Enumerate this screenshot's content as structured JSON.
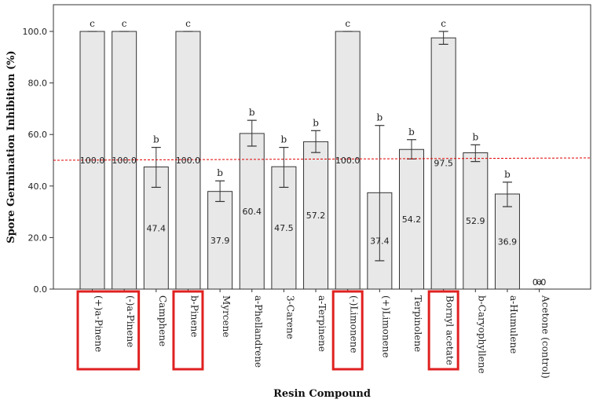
{
  "chart_data": {
    "type": "bar",
    "xlabel": "Resin Compound",
    "ylabel": "Spore Germination Inhibition (%)",
    "ylim": [
      0,
      115
    ],
    "yticks": [
      0,
      20,
      40,
      60,
      80,
      100
    ],
    "ytick_labels": [
      "0.0",
      "20.0",
      "40.0",
      "60.0",
      "80.0",
      "100.0"
    ],
    "categories": [
      "(+)a-Pinene",
      "(-)a-Pinene",
      "Camphene",
      "b-Pinene",
      "Myrcene",
      "a-Phellandrene",
      "3-Carene",
      "a-Terpinene",
      "(-)Limonene",
      "(+)Limonene",
      "Terpinolene",
      "Bornyl acetate",
      "b-Caryophyllene",
      "a-Humulene",
      "Acetone (control)"
    ],
    "values": [
      100.0,
      100.0,
      47.4,
      100.0,
      37.9,
      60.4,
      47.5,
      57.2,
      100.0,
      37.4,
      54.2,
      97.5,
      52.9,
      36.9,
      0.0
    ],
    "value_labels": [
      "100.0",
      "100.0",
      "47.4",
      "100.0",
      "37.9",
      "60.4",
      "47.5",
      "57.2",
      "100.0",
      "37.4",
      "54.2",
      "97.5",
      "52.9",
      "36.9",
      "0.0"
    ],
    "error_low": [
      100,
      100,
      39.5,
      100,
      34,
      55.5,
      39.5,
      53,
      100,
      11,
      50.5,
      95,
      49.5,
      32,
      0
    ],
    "error_high": [
      100,
      100,
      55,
      100,
      42,
      65.5,
      55,
      61.5,
      100,
      63.5,
      58,
      100,
      56,
      41.5,
      0
    ],
    "significance": [
      "c",
      "c",
      "b",
      "c",
      "b",
      "b",
      "b",
      "b",
      "c",
      "b",
      "b",
      "c",
      "b",
      "b",
      "a"
    ],
    "highlighted": [
      "(+)a-Pinene",
      "(-)a-Pinene",
      "b-Pinene",
      "(-)Limonene",
      "Bornyl acetate"
    ],
    "reference_line": 50,
    "grid": false,
    "colors": {
      "bar_fill": "#e8e8e8",
      "bar_stroke": "#333333",
      "reference_line": "#e00000",
      "highlight_box": "#e02020"
    }
  }
}
